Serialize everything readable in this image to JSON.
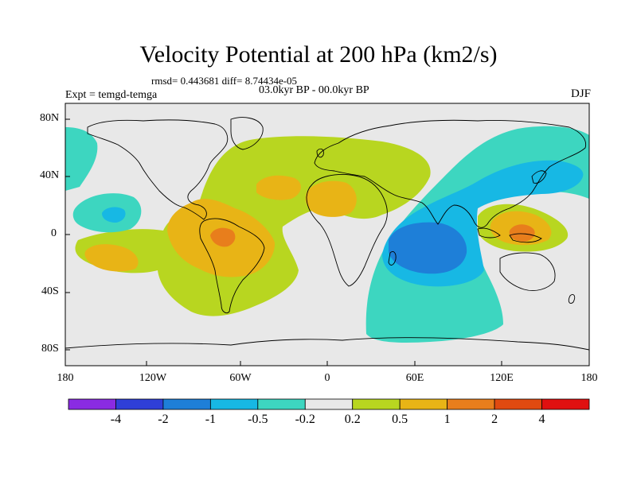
{
  "title": "Velocity Potential at 200 hPa (km2/s)",
  "stats": "rmsd= 0.443681 diff= 8.74434e-05",
  "period": "03.0kyr BP - 00.0kyr BP",
  "expt": "Expt = temgd-temga",
  "season": "DJF",
  "lat_labels": [
    "80N",
    "40N",
    "0",
    "40S",
    "80S"
  ],
  "lon_labels": [
    "180",
    "120W",
    "60W",
    "0",
    "60E",
    "120E",
    "180"
  ],
  "legend": {
    "labels": [
      "-4",
      "-2",
      "-1",
      "-0.5",
      "-0.2",
      "0.2",
      "0.5",
      "1",
      "2",
      "4"
    ],
    "colors": [
      "#8a2be2",
      "#2f3fd8",
      "#1e7fd8",
      "#17b8e4",
      "#3dd6c0",
      "#e8e8e8",
      "#b8d620",
      "#e8b416",
      "#e87e1c",
      "#e04a10",
      "#e01010"
    ]
  },
  "colors": {
    "background": "#e8e8e8",
    "pos_1": "#b8d620",
    "pos_2": "#e8b416",
    "pos_3": "#e87e1c",
    "neg_1": "#3dd6c0",
    "neg_2": "#17b8e4",
    "neg_3": "#1e7fd8"
  }
}
